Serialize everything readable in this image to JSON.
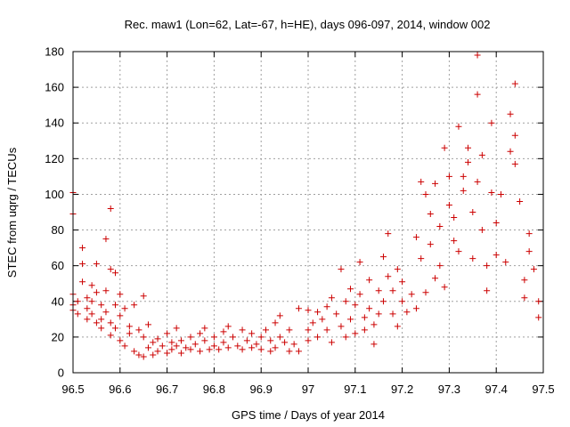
{
  "chart_data": {
    "type": "scatter",
    "title": "Rec. maw1 (Lon=62, Lat=-67, h=HE), days 096-097, 2014, window 002",
    "xlabel": "GPS time / Days of year 2014",
    "ylabel": "STEC from uqrg / TECUs",
    "xlim": [
      96.5,
      97.5
    ],
    "ylim": [
      0,
      180
    ],
    "xticks": [
      "96.5",
      "96.6",
      "96.7",
      "96.8",
      "96.9",
      "97",
      "97.1",
      "97.2",
      "97.3",
      "97.4",
      "97.5"
    ],
    "yticks": [
      "0",
      "20",
      "40",
      "60",
      "80",
      "100",
      "120",
      "140",
      "160",
      "180"
    ],
    "grid": true,
    "marker": "+",
    "color": "#cc0000",
    "series": [
      {
        "name": "STEC",
        "points": [
          [
            96.5,
            101
          ],
          [
            96.5,
            89
          ],
          [
            96.5,
            44
          ],
          [
            96.5,
            38
          ],
          [
            96.5,
            35
          ],
          [
            96.51,
            40
          ],
          [
            96.51,
            33
          ],
          [
            96.52,
            70
          ],
          [
            96.52,
            61
          ],
          [
            96.52,
            51
          ],
          [
            96.53,
            42
          ],
          [
            96.53,
            36
          ],
          [
            96.53,
            30
          ],
          [
            96.54,
            49
          ],
          [
            96.54,
            40
          ],
          [
            96.54,
            33
          ],
          [
            96.55,
            28
          ],
          [
            96.55,
            61
          ],
          [
            96.55,
            45
          ],
          [
            96.56,
            38
          ],
          [
            96.56,
            30
          ],
          [
            96.56,
            25
          ],
          [
            96.57,
            75
          ],
          [
            96.57,
            46
          ],
          [
            96.57,
            34
          ],
          [
            96.58,
            92
          ],
          [
            96.58,
            58
          ],
          [
            96.58,
            28
          ],
          [
            96.58,
            21
          ],
          [
            96.59,
            56
          ],
          [
            96.59,
            38
          ],
          [
            96.59,
            25
          ],
          [
            96.6,
            44
          ],
          [
            96.6,
            32
          ],
          [
            96.6,
            18
          ],
          [
            96.61,
            36
          ],
          [
            96.61,
            15
          ],
          [
            96.62,
            26
          ],
          [
            96.62,
            22
          ],
          [
            96.63,
            38
          ],
          [
            96.63,
            12
          ],
          [
            96.64,
            24
          ],
          [
            96.64,
            10
          ],
          [
            96.65,
            43
          ],
          [
            96.65,
            20
          ],
          [
            96.65,
            9
          ],
          [
            96.66,
            27
          ],
          [
            96.66,
            14
          ],
          [
            96.67,
            17
          ],
          [
            96.67,
            10
          ],
          [
            96.68,
            19
          ],
          [
            96.68,
            12
          ],
          [
            96.69,
            15
          ],
          [
            96.7,
            22
          ],
          [
            96.7,
            11
          ],
          [
            96.71,
            17
          ],
          [
            96.71,
            13
          ],
          [
            96.72,
            25
          ],
          [
            96.72,
            15
          ],
          [
            96.73,
            18
          ],
          [
            96.73,
            11
          ],
          [
            96.74,
            14
          ],
          [
            96.75,
            20
          ],
          [
            96.75,
            13
          ],
          [
            96.76,
            16
          ],
          [
            96.77,
            22
          ],
          [
            96.77,
            12
          ],
          [
            96.78,
            25
          ],
          [
            96.78,
            18
          ],
          [
            96.79,
            13
          ],
          [
            96.8,
            20
          ],
          [
            96.8,
            15
          ],
          [
            96.81,
            13
          ],
          [
            96.82,
            23
          ],
          [
            96.82,
            17
          ],
          [
            96.83,
            26
          ],
          [
            96.83,
            14
          ],
          [
            96.84,
            20
          ],
          [
            96.85,
            15
          ],
          [
            96.86,
            24
          ],
          [
            96.86,
            13
          ],
          [
            96.87,
            18
          ],
          [
            96.88,
            22
          ],
          [
            96.88,
            14
          ],
          [
            96.89,
            16
          ],
          [
            96.9,
            20
          ],
          [
            96.9,
            13
          ],
          [
            96.91,
            24
          ],
          [
            96.92,
            18
          ],
          [
            96.92,
            12
          ],
          [
            96.93,
            28
          ],
          [
            96.93,
            14
          ],
          [
            96.94,
            32
          ],
          [
            96.94,
            20
          ],
          [
            96.95,
            17
          ],
          [
            96.96,
            24
          ],
          [
            96.96,
            12
          ],
          [
            96.97,
            16
          ],
          [
            96.98,
            36
          ],
          [
            96.98,
            12
          ],
          [
            97.0,
            35
          ],
          [
            97.0,
            24
          ],
          [
            97.0,
            18
          ],
          [
            97.01,
            28
          ],
          [
            97.02,
            34
          ],
          [
            97.02,
            20
          ],
          [
            97.03,
            30
          ],
          [
            97.04,
            37
          ],
          [
            97.04,
            24
          ],
          [
            97.05,
            42
          ],
          [
            97.05,
            17
          ],
          [
            97.06,
            33
          ],
          [
            97.07,
            58
          ],
          [
            97.07,
            26
          ],
          [
            97.08,
            40
          ],
          [
            97.08,
            20
          ],
          [
            97.09,
            47
          ],
          [
            97.09,
            30
          ],
          [
            97.1,
            38
          ],
          [
            97.1,
            22
          ],
          [
            97.11,
            62
          ],
          [
            97.11,
            44
          ],
          [
            97.12,
            31
          ],
          [
            97.12,
            24
          ],
          [
            97.13,
            52
          ],
          [
            97.13,
            36
          ],
          [
            97.14,
            27
          ],
          [
            97.14,
            16
          ],
          [
            97.15,
            46
          ],
          [
            97.15,
            33
          ],
          [
            97.16,
            65
          ],
          [
            97.16,
            40
          ],
          [
            97.17,
            78
          ],
          [
            97.17,
            54
          ],
          [
            97.18,
            46
          ],
          [
            97.18,
            33
          ],
          [
            97.19,
            58
          ],
          [
            97.19,
            26
          ],
          [
            97.2,
            51
          ],
          [
            97.2,
            40
          ],
          [
            97.21,
            34
          ],
          [
            97.22,
            44
          ],
          [
            97.23,
            76
          ],
          [
            97.23,
            36
          ],
          [
            97.24,
            107
          ],
          [
            97.24,
            64
          ],
          [
            97.25,
            45
          ],
          [
            97.25,
            100
          ],
          [
            97.26,
            89
          ],
          [
            97.26,
            72
          ],
          [
            97.27,
            53
          ],
          [
            97.27,
            106
          ],
          [
            97.28,
            82
          ],
          [
            97.28,
            60
          ],
          [
            97.29,
            126
          ],
          [
            97.29,
            48
          ],
          [
            97.3,
            94
          ],
          [
            97.3,
            110
          ],
          [
            97.31,
            74
          ],
          [
            97.31,
            87
          ],
          [
            97.32,
            138
          ],
          [
            97.32,
            68
          ],
          [
            97.33,
            110
          ],
          [
            97.33,
            102
          ],
          [
            97.34,
            126
          ],
          [
            97.34,
            118
          ],
          [
            97.35,
            90
          ],
          [
            97.35,
            64
          ],
          [
            97.36,
            107
          ],
          [
            97.36,
            156
          ],
          [
            97.36,
            178
          ],
          [
            97.37,
            122
          ],
          [
            97.37,
            80
          ],
          [
            97.38,
            60
          ],
          [
            97.38,
            46
          ],
          [
            97.39,
            140
          ],
          [
            97.39,
            101
          ],
          [
            97.4,
            84
          ],
          [
            97.4,
            66
          ],
          [
            97.41,
            100
          ],
          [
            97.42,
            62
          ],
          [
            97.43,
            145
          ],
          [
            97.43,
            124
          ],
          [
            97.44,
            162
          ],
          [
            97.44,
            133
          ],
          [
            97.44,
            117
          ],
          [
            97.45,
            96
          ],
          [
            97.46,
            52
          ],
          [
            97.46,
            42
          ],
          [
            97.47,
            78
          ],
          [
            97.47,
            68
          ],
          [
            97.48,
            58
          ],
          [
            97.49,
            40
          ],
          [
            97.49,
            31
          ]
        ]
      }
    ]
  }
}
